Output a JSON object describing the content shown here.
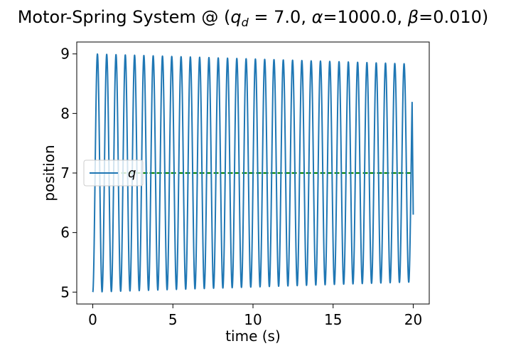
{
  "chart_data": {
    "type": "line",
    "title": "Motor-Spring System @ (q_d = 7.0, α=1000.0, β=0.010)",
    "title_parts": {
      "prefix": "Motor-Spring System @ (",
      "q": "q",
      "q_sub": "d",
      "q_rest": " = 7.0, ",
      "alpha": "α",
      "alpha_rest": "=1000.0, ",
      "beta": "β",
      "beta_rest": "=0.010)"
    },
    "xlabel": "time (s)",
    "ylabel": "position",
    "xlim": [
      -1.0,
      21.0
    ],
    "ylim": [
      4.8,
      9.2
    ],
    "xticks": [
      0,
      5,
      10,
      15,
      20
    ],
    "yticks": [
      5,
      6,
      7,
      8,
      9
    ],
    "xtick_labels": [
      "0",
      "5",
      "10",
      "15",
      "20"
    ],
    "ytick_labels": [
      "5",
      "6",
      "7",
      "8",
      "9"
    ],
    "grid": false,
    "legend": {
      "placement": "center-left",
      "entries": [
        "q"
      ]
    },
    "series": [
      {
        "name": "q",
        "color": "#1f77b4",
        "style": "solid",
        "x_start": 0,
        "x_end": 20,
        "initial_value": 5.0,
        "final_value": 6.3,
        "oscillation": {
          "center": 7.0,
          "period": 0.58,
          "amplitude_start": 2.0,
          "amplitude_end": 1.83
        }
      },
      {
        "color": "#008000",
        "style": "dashed",
        "x_start": 0,
        "x_end": 20,
        "value": 7.0
      }
    ]
  }
}
